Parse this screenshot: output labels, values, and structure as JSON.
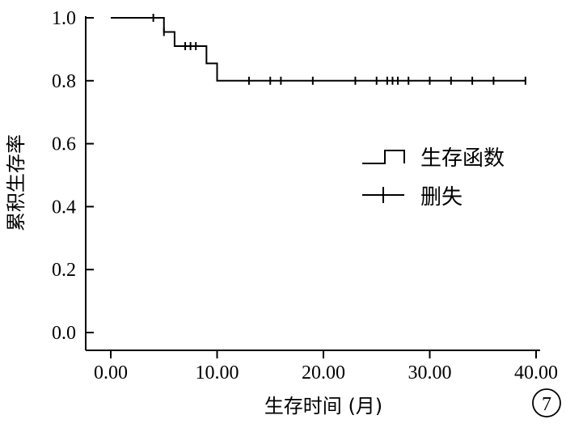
{
  "chart_data": {
    "type": "line",
    "step": true,
    "xlabel": "生存时间 (月)",
    "ylabel": "累积生存率",
    "xlim": [
      0,
      40
    ],
    "ylim": [
      0,
      1
    ],
    "xticks": [
      0,
      10,
      20,
      30,
      40
    ],
    "xtick_labels": [
      "0.00",
      "10.00",
      "20.00",
      "30.00",
      "40.00"
    ],
    "yticks": [
      0,
      0.2,
      0.4,
      0.6,
      0.8,
      1.0
    ],
    "ytick_labels": [
      "0.0",
      "0.2",
      "0.4",
      "0.6",
      "0.8",
      "1.0"
    ],
    "grid": false,
    "legend_position": "right",
    "series": [
      {
        "name": "生存函数",
        "style": "step",
        "x": [
          0,
          5,
          6,
          9,
          10,
          39
        ],
        "y": [
          1.0,
          0.955,
          0.91,
          0.855,
          0.8,
          0.8
        ]
      },
      {
        "name": "删失",
        "style": "censor-marks",
        "x": [
          4,
          5,
          7,
          7.5,
          8,
          13,
          15,
          16,
          19,
          23,
          25,
          26,
          26.5,
          27,
          28,
          30,
          32,
          34,
          36,
          39
        ],
        "y": [
          1.0,
          0.955,
          0.91,
          0.91,
          0.91,
          0.8,
          0.8,
          0.8,
          0.8,
          0.8,
          0.8,
          0.8,
          0.8,
          0.8,
          0.8,
          0.8,
          0.8,
          0.8,
          0.8,
          0.8
        ]
      }
    ],
    "annotation": "7"
  }
}
